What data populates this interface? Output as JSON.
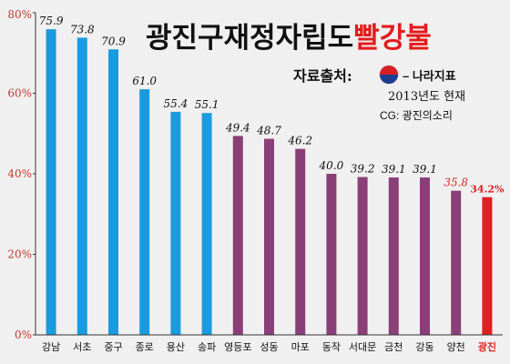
{
  "header": {
    "title_main": "광진구재정자립도",
    "title_accent": "빨강불",
    "source_label": "자료출처:",
    "source_org": "– 나라지표",
    "year_note": "2013년도 현재",
    "credit": "CG: 광진의소리"
  },
  "colors": {
    "background": "#f0f0f0",
    "seoul_top": "#1a9be0",
    "mid": "#8b3f79",
    "low": "#8b3f79",
    "highlight": "#e02020",
    "axis_text": "#c0392b",
    "title_accent": "#e31b1b"
  },
  "chart_data": {
    "type": "bar",
    "title": "",
    "xlabel": "",
    "ylabel": "",
    "ylim": [
      0,
      80
    ],
    "yticks": [
      0,
      20,
      40,
      60,
      80
    ],
    "ytick_labels": [
      "0%",
      "20%",
      "40%",
      "60%",
      "80%"
    ],
    "grid": false,
    "legend": "none",
    "categories": [
      "강남",
      "서초",
      "중구",
      "종로",
      "용산",
      "송파",
      "영등포",
      "성동",
      "마포",
      "동작",
      "서대문",
      "금천",
      "강동",
      "양천",
      "광진"
    ],
    "values": [
      75.9,
      73.8,
      70.9,
      61.0,
      55.4,
      55.1,
      49.4,
      48.7,
      46.2,
      40.0,
      39.2,
      39.1,
      39.1,
      35.8,
      34.2
    ],
    "value_labels": [
      "75.9",
      "73.8",
      "70.9",
      "61.0",
      "55.4",
      "55.1",
      "49.4",
      "48.7",
      "46.2",
      "40.0",
      "39.2",
      "39.1",
      "39.1",
      "35.8",
      "34.2%"
    ],
    "bar_group": [
      "blue",
      "blue",
      "blue",
      "blue",
      "blue",
      "blue",
      "purple",
      "purple",
      "purple",
      "purple",
      "purple",
      "purple",
      "purple",
      "purple",
      "red"
    ],
    "label_color": [
      "dark",
      "dark",
      "dark",
      "dark",
      "dark",
      "dark",
      "dark",
      "dark",
      "dark",
      "dark",
      "dark",
      "dark",
      "dark",
      "red",
      "red"
    ],
    "highlight_index": 14
  }
}
